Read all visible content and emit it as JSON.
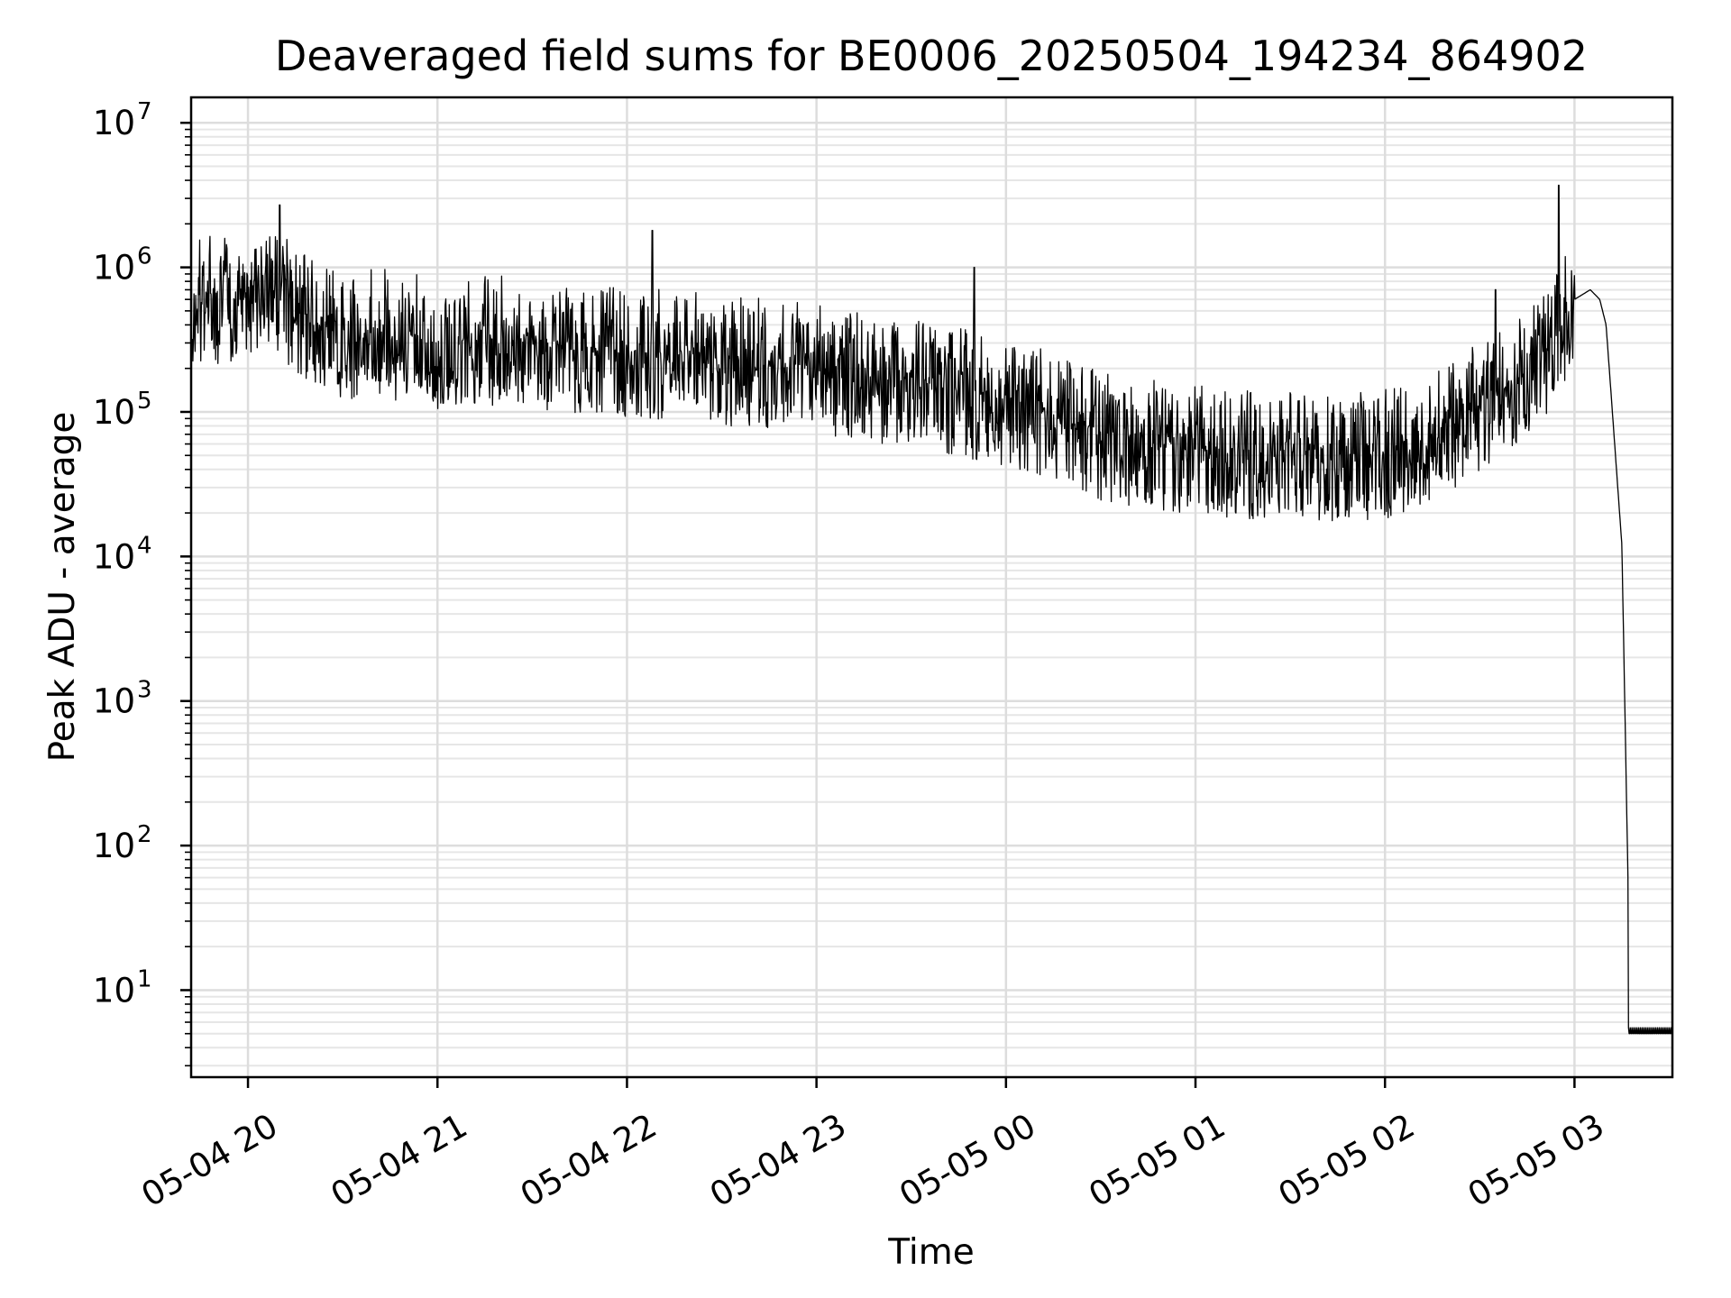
{
  "chart_data": {
    "type": "line",
    "title": "Deaveraged field sums for BE0006_20250504_194234_864902",
    "xlabel": "Time",
    "ylabel": "Peak ADU - average",
    "yscale": "log",
    "ylim": [
      2.5,
      15000000
    ],
    "xlim": [
      "2025-05-04 19:42",
      "2025-05-05 03:31"
    ],
    "grid": "on (major and minor)",
    "x_tick_labels": [
      "05-04 20",
      "05-04 21",
      "05-04 22",
      "05-04 23",
      "05-05 00",
      "05-05 01",
      "05-05 02",
      "05-05 03"
    ],
    "y_tick_labels": [
      {
        "base": "10",
        "exp": "1"
      },
      {
        "base": "10",
        "exp": "2"
      },
      {
        "base": "10",
        "exp": "3"
      },
      {
        "base": "10",
        "exp": "4"
      },
      {
        "base": "10",
        "exp": "5"
      },
      {
        "base": "10",
        "exp": "6"
      },
      {
        "base": "10",
        "exp": "7"
      }
    ],
    "series": [
      {
        "color": "#000000",
        "x": [
          "2025-05-04 19:42",
          "2025-05-04 19:50",
          "2025-05-04 20:00",
          "2025-05-04 20:05",
          "2025-05-04 20:10",
          "2025-05-04 20:20",
          "2025-05-04 20:30",
          "2025-05-04 20:45",
          "2025-05-04 21:00",
          "2025-05-04 21:15",
          "2025-05-04 21:30",
          "2025-05-04 21:45",
          "2025-05-04 22:00",
          "2025-05-04 22:15",
          "2025-05-04 22:30",
          "2025-05-04 22:45",
          "2025-05-04 23:00",
          "2025-05-04 23:15",
          "2025-05-04 23:30",
          "2025-05-04 23:45",
          "2025-05-05 00:00",
          "2025-05-05 00:10",
          "2025-05-05 00:20",
          "2025-05-05 00:30",
          "2025-05-05 00:45",
          "2025-05-05 01:00",
          "2025-05-05 01:15",
          "2025-05-05 01:30",
          "2025-05-05 01:45",
          "2025-05-05 02:00",
          "2025-05-05 02:15",
          "2025-05-05 02:30",
          "2025-05-05 02:45",
          "2025-05-05 02:55",
          "2025-05-05 03:00",
          "2025-05-05 03:05",
          "2025-05-05 03:08",
          "2025-05-05 03:10",
          "2025-05-05 03:12",
          "2025-05-05 03:15",
          "2025-05-05 03:17",
          "2025-05-05 03:20",
          "2025-05-05 03:25",
          "2025-05-05 03:31"
        ],
        "y": [
          550000,
          600000,
          600000,
          900000,
          700000,
          400000,
          350000,
          350000,
          300000,
          320000,
          300000,
          280000,
          260000,
          250000,
          230000,
          220000,
          200000,
          170000,
          160000,
          140000,
          120000,
          100000,
          85000,
          70000,
          60000,
          55000,
          52000,
          50000,
          50000,
          52000,
          65000,
          110000,
          180000,
          350000,
          600000,
          700000,
          600000,
          400000,
          100000,
          12000,
          50,
          5,
          5,
          5
        ],
        "noise_band": {
          "upper_factor": 2.8,
          "lower_factor": 0.35,
          "note": "dense spiky scatter around the trend"
        },
        "notable_spikes": [
          {
            "x": "2025-05-04 20:10",
            "y": 2700000
          },
          {
            "x": "2025-05-04 22:08",
            "y": 1800000
          },
          {
            "x": "2025-05-04 23:50",
            "y": 1000000
          },
          {
            "x": "2025-05-05 02:35",
            "y": 700000
          },
          {
            "x": "2025-05-05 02:55",
            "y": 3700000
          }
        ]
      }
    ]
  }
}
